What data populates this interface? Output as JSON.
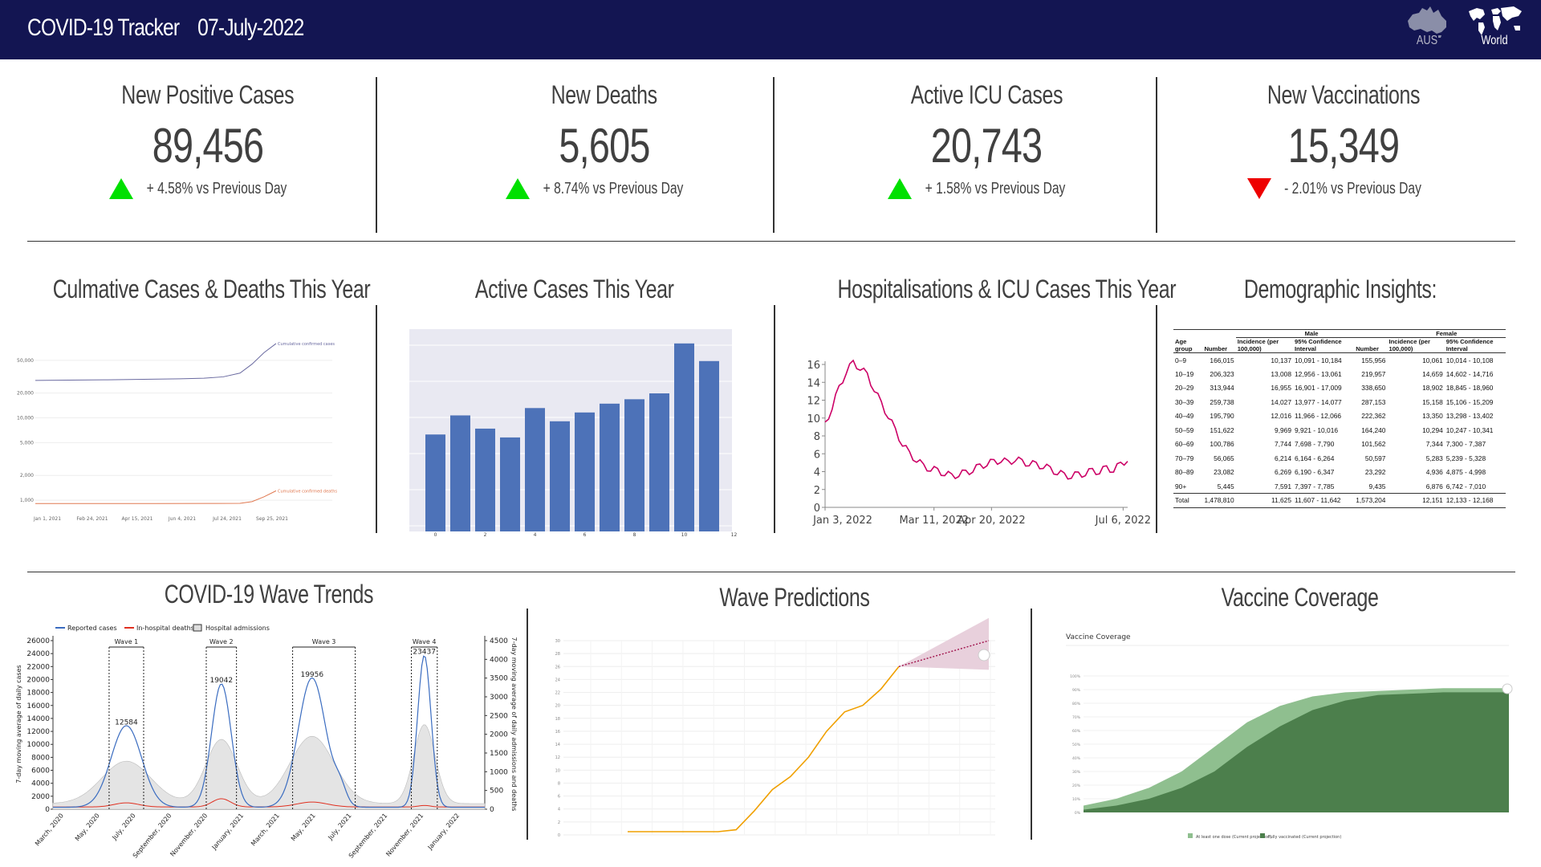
{
  "header": {
    "app_name": "COVID-19 Tracker",
    "date": "07-July-2022",
    "regions": [
      {
        "label": "AUS",
        "icon": "australia-map-icon"
      },
      {
        "label": "World",
        "icon": "world-map-icon"
      }
    ]
  },
  "kpis": [
    {
      "title": "New Positive Cases",
      "value": "89,456",
      "change": "+ 4.58% vs Previous Day",
      "direction": "up"
    },
    {
      "title": "New Deaths",
      "value": "5,605",
      "change": "+ 8.74% vs Previous Day",
      "direction": "up"
    },
    {
      "title": "Active ICU Cases",
      "value": "20,743",
      "change": "+ 1.58% vs Previous Day",
      "direction": "up"
    },
    {
      "title": "New Vaccinations",
      "value": "15,349",
      "change": "- 2.01% vs Previous Day",
      "direction": "down"
    }
  ],
  "colors": {
    "header_bg": "#131552",
    "up": "#00e000",
    "down": "#ee0000",
    "bar": "#4d72b8",
    "icu_line": "#cc0066",
    "prediction": "#f0a000",
    "vacc_dark": "#4c7f4c",
    "vacc_light": "#8fbf8f"
  },
  "sections": {
    "cumulative": {
      "title": "Culmative Cases & Deaths This Year"
    },
    "active": {
      "title": "Active Cases This Year"
    },
    "hospital": {
      "title": "Hospitalisations & ICU Cases This Year"
    },
    "demographic": {
      "title": "Demographic Insights:"
    },
    "waves": {
      "title": "COVID-19 Wave Trends"
    },
    "predictions": {
      "title": "Wave Predictions"
    },
    "vaccine": {
      "title": "Vaccine Coverage"
    }
  },
  "chart_data": [
    {
      "id": "cumulative",
      "type": "line",
      "yscale": "log",
      "yticks": [
        "50,000",
        "20,000",
        "10,000",
        "5,000",
        "2,000",
        "1,000"
      ],
      "xticks": [
        "Jan 1, 2021",
        "Feb 24, 2021",
        "Apr 15, 2021",
        "Jun 4, 2021",
        "Jul 24, 2021",
        "Sep 25, 2021"
      ],
      "series": [
        {
          "name": "Cumulative confirmed cases",
          "x": [
            0,
            0.3,
            0.6,
            0.7,
            0.78,
            0.85,
            0.9,
            0.95,
            1.0
          ],
          "values": [
            28500,
            29000,
            29800,
            30300,
            31500,
            35000,
            45000,
            62000,
            80000
          ]
        },
        {
          "name": "Cumulative confirmed deaths",
          "x": [
            0,
            0.5,
            0.75,
            0.85,
            0.9,
            0.95,
            1.0
          ],
          "values": [
            910,
            910,
            912,
            915,
            960,
            1100,
            1300
          ]
        }
      ]
    },
    {
      "id": "active",
      "type": "bar",
      "values": [
        6.6,
        7.9,
        7.0,
        6.4,
        8.4,
        7.5,
        8.1,
        8.7,
        9.0,
        9.4,
        12.8,
        11.6
      ],
      "ylim": [
        0,
        13.5
      ],
      "xticks": [
        "0",
        "2",
        "4",
        "6",
        "8",
        "10",
        "12"
      ]
    },
    {
      "id": "hospital",
      "type": "line",
      "yticks": [
        "16",
        "14",
        "12",
        "10",
        "8",
        "6",
        "4",
        "2",
        "0"
      ],
      "ylim": [
        0,
        16
      ],
      "xticks": [
        "Jan 3, 2022",
        "Mar 11, 2022",
        "Apr 20, 2022",
        "Jul 6, 2022"
      ],
      "values": [
        9.3,
        11.2,
        13.4,
        15.2,
        16.2,
        15.6,
        14.8,
        13.2,
        11.6,
        10.2,
        8.6,
        7.1,
        6.0,
        5.3,
        4.6,
        4.3,
        4.1,
        3.8,
        3.5,
        3.7,
        3.9,
        4.2,
        4.6,
        4.9,
        5.1,
        5.3,
        5.0,
        5.4,
        5.1,
        4.9,
        4.8,
        4.6,
        4.3,
        3.9,
        3.6,
        3.5,
        3.7,
        3.8,
        4.1,
        4.0,
        4.4,
        4.2,
        4.8,
        5.4
      ]
    },
    {
      "id": "waves",
      "type": "line",
      "series": [
        {
          "name": "Reported cases"
        },
        {
          "name": "In-hospital deaths"
        },
        {
          "name": "Hospital admissions"
        }
      ],
      "yticks_left": [
        "26000",
        "24000",
        "22000",
        "20000",
        "18000",
        "16000",
        "14000",
        "12000",
        "10000",
        "8000",
        "6000",
        "4000",
        "2000",
        "0"
      ],
      "yticks_right": [
        "4500",
        "4000",
        "3500",
        "3000",
        "2500",
        "2000",
        "1500",
        "1000",
        "500",
        "0"
      ],
      "ylabel_left": "7-day moving average of daily cases",
      "ylabel_right": "7-day moving average of daily admissions and deaths",
      "xticks": [
        "March, 2020",
        "May, 2020",
        "July, 2020",
        "September, 2020",
        "November, 2020",
        "January, 2021",
        "March, 2021",
        "May, 2021",
        "July, 2021",
        "September, 2021",
        "November, 2021",
        "January, 2022"
      ],
      "waves": [
        "Wave 1",
        "Wave 2",
        "Wave 3",
        "Wave 4"
      ],
      "peaks": [
        "12584",
        "19042",
        "19956",
        "23437"
      ]
    },
    {
      "id": "predictions",
      "type": "line",
      "values": [
        0,
        0,
        0,
        0,
        0,
        0,
        0.3,
        3.2,
        6.5,
        8.5,
        11.5,
        15.5,
        18.5,
        19.5,
        22.0,
        25.5
      ]
    },
    {
      "id": "vaccine",
      "type": "area",
      "title": "Vaccine Coverage",
      "series": [
        {
          "name": "At least one dose (Current projection)",
          "values": [
            5,
            10,
            18,
            30,
            48,
            66,
            78,
            85,
            88,
            89,
            90,
            91,
            91,
            91
          ]
        },
        {
          "name": "Fully vaccinated (Current projection)",
          "values": [
            2,
            5,
            10,
            18,
            30,
            48,
            63,
            75,
            82,
            86,
            87,
            88,
            88,
            88
          ]
        }
      ]
    }
  ],
  "demographics": {
    "group_headers": [
      "Male",
      "Female"
    ],
    "columns": [
      "Age group",
      "Number",
      "Incidence (per 100,000)",
      "95% Confidence Interval",
      "Number",
      "Incidence (per 100,000)",
      "95% Confidence Interval"
    ],
    "rows": [
      [
        "0–9",
        "166,015",
        "10,137",
        "10,091 - 10,184",
        "155,956",
        "10,061",
        "10,014 - 10,108"
      ],
      [
        "10–19",
        "206,323",
        "13,008",
        "12,956 - 13,061",
        "219,957",
        "14,659",
        "14,602 - 14,716"
      ],
      [
        "20–29",
        "313,944",
        "16,955",
        "16,901 - 17,009",
        "338,650",
        "18,902",
        "18,845 - 18,960"
      ],
      [
        "30–39",
        "259,738",
        "14,027",
        "13,977 - 14,077",
        "287,153",
        "15,158",
        "15,106 - 15,209"
      ],
      [
        "40–49",
        "195,790",
        "12,016",
        "11,966 - 12,066",
        "222,362",
        "13,350",
        "13,298 - 13,402"
      ],
      [
        "50–59",
        "151,622",
        "9,969",
        "9,921 - 10,016",
        "164,240",
        "10,294",
        "10,247 - 10,341"
      ],
      [
        "60–69",
        "100,786",
        "7,744",
        "7,698 - 7,790",
        "101,562",
        "7,344",
        "7,300 - 7,387"
      ],
      [
        "70–79",
        "56,065",
        "6,214",
        "6,164 - 6,264",
        "50,597",
        "5,283",
        "5,239 - 5,328"
      ],
      [
        "80–89",
        "23,082",
        "6,269",
        "6,190 - 6,347",
        "23,292",
        "4,936",
        "4,875 - 4,998"
      ],
      [
        "90+",
        "5,445",
        "7,591",
        "7,397 - 7,785",
        "9,435",
        "6,876",
        "6,742 - 7,010"
      ],
      [
        "Total",
        "1,478,810",
        "11,625",
        "11,607 - 11,642",
        "1,573,204",
        "12,151",
        "12,133 - 12,168"
      ]
    ]
  }
}
